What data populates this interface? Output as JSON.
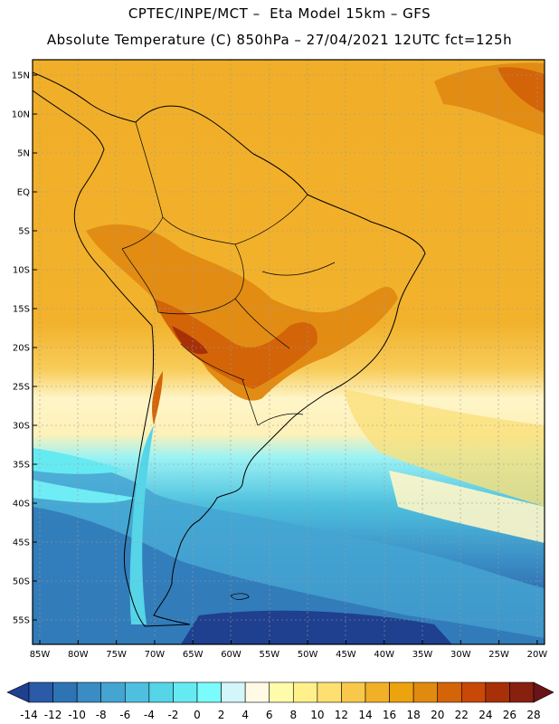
{
  "header": {
    "line1": "CPTEC/INPE/MCT –  Eta Model 15km – GFS",
    "line2": "Absolute Temperature (C) 850hPa – 27/04/2021 12UTC fct=125h"
  },
  "map": {
    "lat_labels": [
      "15N",
      "10N",
      "5N",
      "EQ",
      "5S",
      "10S",
      "15S",
      "20S",
      "25S",
      "30S",
      "35S",
      "40S",
      "45S",
      "50S",
      "55S"
    ],
    "lon_labels": [
      "85W",
      "80W",
      "75W",
      "70W",
      "65W",
      "60W",
      "55W",
      "50W",
      "45W",
      "40W",
      "35W",
      "30W",
      "25W",
      "20W"
    ],
    "lat_range": [
      -58,
      17
    ],
    "lon_range": [
      -86,
      -19
    ]
  },
  "colorbar": {
    "labels": [
      "-14",
      "-12",
      "-10",
      "-8",
      "-6",
      "-4",
      "-2",
      "0",
      "2",
      "4",
      "6",
      "8",
      "10",
      "12",
      "14",
      "16",
      "18",
      "20",
      "22",
      "24",
      "26",
      "28"
    ],
    "colors": [
      "#1f3f8f",
      "#2a5aa8",
      "#2e74b5",
      "#3a8cc4",
      "#44a4d2",
      "#4fbfe0",
      "#56d4e8",
      "#66eaf2",
      "#7afcfc",
      "#d2f6fa",
      "#fefae6",
      "#fefcaa",
      "#fef08a",
      "#fee070",
      "#f8c84a",
      "#f2b028",
      "#eda210",
      "#e08a10",
      "#d46408",
      "#c84808",
      "#a83008",
      "#882010",
      "#6a1418"
    ]
  }
}
